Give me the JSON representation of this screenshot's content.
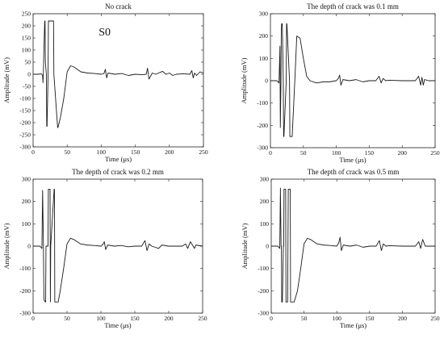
{
  "figure": {
    "panels": [
      {
        "title": "No crack",
        "annotation": "S0"
      },
      {
        "title": "The depth of crack was 0.1 mm"
      },
      {
        "title": "The depth of crack was 0.2 mm"
      },
      {
        "title": "The depth of crack was 0.5 mm"
      }
    ]
  },
  "chart_data": [
    {
      "type": "line",
      "title": "No crack",
      "xlabel": "Time (μs)",
      "ylabel": "Amplitude (mV)",
      "xlim": [
        0,
        250
      ],
      "ylim": [
        -300,
        250
      ],
      "xticks": [
        0,
        50,
        100,
        150,
        200,
        250
      ],
      "yticks": [
        -300,
        -250,
        -200,
        -150,
        -100,
        -50,
        0,
        50,
        100,
        150,
        200,
        250
      ],
      "grid": false,
      "annotations": [
        {
          "text": "S0",
          "x": 105,
          "y": 160
        }
      ],
      "series": [
        {
          "x": [
            0,
            8,
            12,
            14,
            14.5,
            15,
            17,
            17.5,
            18,
            19.5,
            20,
            20.5,
            22,
            22.5,
            23,
            30,
            30.5,
            36,
            36.5,
            40,
            45,
            50,
            55,
            60,
            70,
            80,
            90,
            100,
            104,
            106,
            108,
            110,
            120,
            130,
            140,
            150,
            160,
            166,
            168,
            170,
            175,
            180,
            190,
            195,
            200,
            205,
            210,
            220,
            230,
            233,
            235,
            237,
            240,
            245,
            250
          ],
          "y": [
            0,
            0,
            2,
            -5,
            -35,
            0,
            220,
            220,
            50,
            0,
            -215,
            -215,
            0,
            220,
            220,
            220,
            0,
            -220,
            -220,
            -180,
            -100,
            10,
            35,
            30,
            10,
            5,
            3,
            0,
            3,
            20,
            -15,
            5,
            0,
            3,
            -5,
            0,
            -2,
            0,
            25,
            -20,
            5,
            0,
            12,
            0,
            5,
            -5,
            0,
            2,
            0,
            15,
            -15,
            5,
            -5,
            10,
            5
          ]
        }
      ]
    },
    {
      "type": "line",
      "title": "The depth of crack was 0.1 mm",
      "xlabel": "Time (μs)",
      "ylabel": "Amplitude (mV)",
      "xlim": [
        0,
        250
      ],
      "ylim": [
        -300,
        300
      ],
      "xticks": [
        0,
        50,
        100,
        150,
        200,
        250
      ],
      "yticks": [
        -300,
        -200,
        -100,
        0,
        100,
        200,
        300
      ],
      "grid": false,
      "series": [
        {
          "x": [
            0,
            10,
            13,
            14.5,
            15,
            16,
            16.5,
            17,
            18,
            19.5,
            20,
            20.5,
            24,
            24.5,
            25,
            29,
            29.5,
            33,
            37,
            40,
            45,
            50,
            55,
            60,
            70,
            80,
            90,
            100,
            103,
            105,
            107,
            110,
            120,
            130,
            140,
            150,
            160,
            165,
            168,
            171,
            175,
            180,
            200,
            220,
            225,
            228,
            230,
            232,
            234,
            240,
            250
          ],
          "y": [
            0,
            0,
            -10,
            155,
            -210,
            0,
            230,
            255,
            255,
            0,
            -250,
            -250,
            0,
            255,
            255,
            0,
            -250,
            -250,
            0,
            200,
            190,
            100,
            20,
            0,
            -10,
            -5,
            -5,
            0,
            10,
            25,
            -20,
            5,
            0,
            5,
            -5,
            0,
            0,
            20,
            -10,
            10,
            0,
            2,
            0,
            0,
            20,
            -20,
            15,
            -20,
            5,
            0,
            0
          ]
        }
      ]
    },
    {
      "type": "line",
      "title": "The depth of crack was 0.2 mm",
      "xlabel": "Time (μs)",
      "ylabel": "Amplitude (mV)",
      "xlim": [
        0,
        250
      ],
      "ylim": [
        -300,
        300
      ],
      "xticks": [
        0,
        50,
        100,
        150,
        200,
        250
      ],
      "yticks": [
        -300,
        -200,
        -100,
        0,
        100,
        200,
        300
      ],
      "grid": false,
      "series": [
        {
          "x": [
            0,
            10,
            13,
            14,
            15,
            16,
            18,
            18.5,
            19,
            22,
            22.5,
            25,
            25.5,
            26,
            31,
            31.5,
            32,
            37,
            40,
            45,
            50,
            55,
            60,
            70,
            80,
            90,
            100,
            103,
            105,
            107,
            110,
            120,
            130,
            140,
            150,
            160,
            165,
            168,
            171,
            175,
            180,
            185,
            190,
            200,
            210,
            220,
            225,
            228,
            232,
            238,
            240,
            250
          ],
          "y": [
            0,
            0,
            -10,
            250,
            60,
            -240,
            -250,
            -250,
            0,
            0,
            255,
            255,
            -250,
            0,
            255,
            255,
            -250,
            -250,
            -200,
            -100,
            10,
            35,
            30,
            10,
            5,
            3,
            0,
            8,
            20,
            -15,
            5,
            0,
            3,
            -3,
            0,
            0,
            25,
            -20,
            10,
            0,
            -5,
            -10,
            5,
            0,
            0,
            0,
            10,
            -10,
            20,
            -10,
            5,
            0
          ]
        }
      ]
    },
    {
      "type": "line",
      "title": "The depth of crack was 0.5 mm",
      "xlabel": "Time (μs)",
      "ylabel": "Amplitude (mV)",
      "xlim": [
        0,
        250
      ],
      "ylim": [
        -300,
        300
      ],
      "xticks": [
        0,
        50,
        100,
        150,
        200,
        250
      ],
      "yticks": [
        -300,
        -200,
        -100,
        0,
        100,
        200,
        300
      ],
      "grid": false,
      "series": [
        {
          "x": [
            0,
            10,
            13,
            14,
            15,
            15.5,
            16,
            17,
            18.5,
            19,
            19.5,
            22,
            22.5,
            25,
            25.5,
            26,
            29,
            29.5,
            30,
            35,
            40,
            45,
            50,
            55,
            60,
            70,
            80,
            90,
            100,
            103,
            105,
            107,
            110,
            120,
            130,
            140,
            150,
            160,
            165,
            168,
            171,
            175,
            180,
            200,
            210,
            220,
            225,
            228,
            231,
            235,
            240,
            250
          ],
          "y": [
            0,
            0,
            -10,
            260,
            0,
            0,
            -250,
            -250,
            0,
            0,
            255,
            255,
            -250,
            -250,
            0,
            255,
            255,
            -250,
            -250,
            -250,
            -200,
            -100,
            10,
            35,
            30,
            10,
            5,
            3,
            0,
            15,
            40,
            -20,
            5,
            0,
            5,
            -5,
            0,
            0,
            25,
            -20,
            10,
            0,
            2,
            0,
            0,
            0,
            20,
            -10,
            30,
            0,
            0,
            0
          ]
        }
      ]
    }
  ]
}
